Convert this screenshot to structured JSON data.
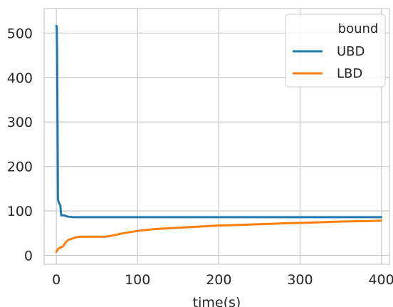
{
  "chart_data": {
    "type": "line",
    "xlabel": "time(s)",
    "ylabel": "",
    "xlim": [
      -15,
      410
    ],
    "ylim": [
      -20,
      555
    ],
    "xticks": [
      0,
      100,
      200,
      300,
      400
    ],
    "yticks": [
      0,
      100,
      200,
      300,
      400,
      500
    ],
    "xtick_labels": [
      "0",
      "100",
      "200",
      "300",
      "400"
    ],
    "ytick_labels": [
      "0",
      "100",
      "200",
      "300",
      "400",
      "500"
    ],
    "grid": true,
    "legend": {
      "title": "bound",
      "position": "top-right"
    },
    "colors": {
      "UBD": "#1f77b4",
      "LBD": "#ff7f0e",
      "grid": "#cccccc",
      "frame": "#cccccc"
    },
    "series": [
      {
        "name": "UBD",
        "x": [
          0,
          0.5,
          1,
          1.5,
          2,
          3,
          4,
          5,
          6,
          8,
          10,
          12,
          15,
          20,
          400
        ],
        "y": [
          516,
          515,
          440,
          300,
          125,
          120,
          115,
          112,
          90,
          90,
          90,
          88,
          87,
          86,
          86
        ]
      },
      {
        "name": "LBD",
        "x": [
          0,
          2,
          4,
          6,
          8,
          10,
          12,
          15,
          20,
          25,
          30,
          35,
          40,
          50,
          60,
          65,
          70,
          80,
          100,
          120,
          140,
          160,
          180,
          200,
          220,
          250,
          280,
          300,
          320,
          350,
          380,
          400
        ],
        "y": [
          8,
          14,
          17,
          18,
          20,
          25,
          30,
          35,
          38,
          41,
          42,
          42,
          42,
          42,
          42,
          43,
          45,
          49,
          55,
          59,
          61,
          63,
          65,
          67,
          68,
          70,
          72,
          73,
          74,
          76,
          77,
          78
        ]
      }
    ]
  }
}
